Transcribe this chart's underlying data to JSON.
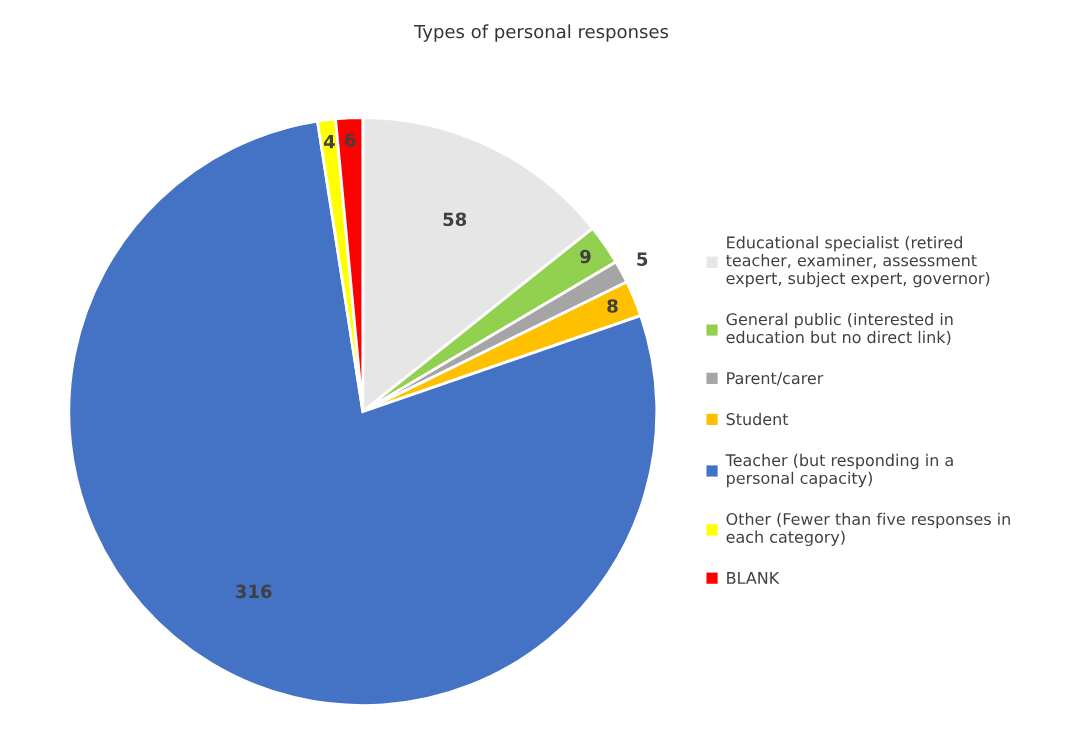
{
  "chart_data": {
    "type": "pie",
    "title": "Types of personal responses",
    "categories": [
      "Educational specialist (retired teacher, examiner, assessment expert, subject expert, governor)",
      "General public (interested in education but no direct link)",
      "Parent/carer",
      "Student",
      "Teacher (but responding in a personal capacity)",
      "Other (Fewer than five responses in each category)",
      "BLANK"
    ],
    "values": [
      58,
      9,
      5,
      8,
      316,
      4,
      6
    ],
    "colors": [
      "#e7e6e6",
      "#92d050",
      "#a5a5a5",
      "#ffc000",
      "#4472c4",
      "#ffff00",
      "#ff0000"
    ],
    "data_labels": true,
    "legend": "right"
  }
}
